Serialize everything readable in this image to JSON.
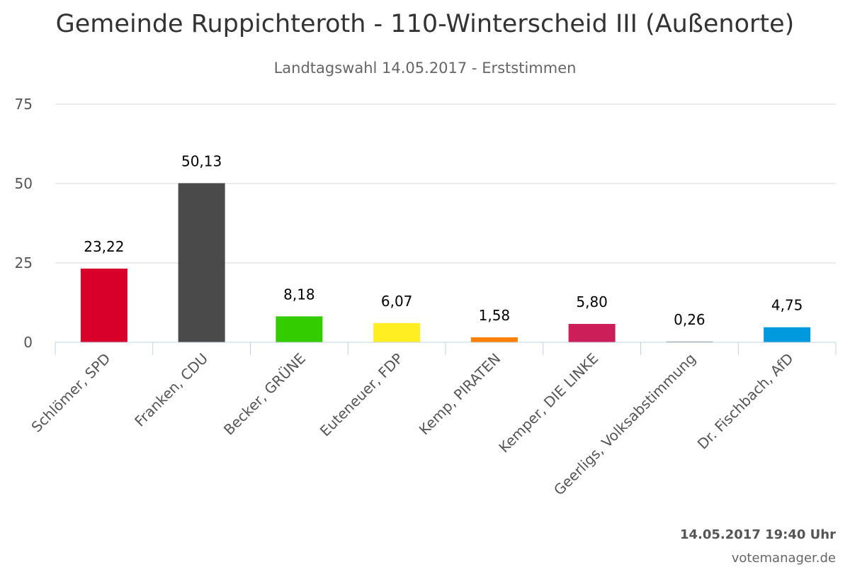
{
  "chart_data": {
    "type": "bar",
    "title": "Gemeinde Ruppichteroth - 110-Winterscheid III (Außenorte)",
    "subtitle": "Landtagswahl 14.05.2017 - Erststimmen",
    "categories": [
      "Schlömer, SPD",
      "Franken, CDU",
      "Becker, GRÜNE",
      "Euteneuer, FDP",
      "Kemp, PIRATEN",
      "Kemper, DIE LINKE",
      "Geerligs, Volksabstimmung",
      "Dr. Fischbach, AfD"
    ],
    "values": [
      23.22,
      50.13,
      8.18,
      6.07,
      1.58,
      5.8,
      0.26,
      4.75
    ],
    "value_labels": [
      "23,22",
      "50,13",
      "8,18",
      "6,07",
      "1,58",
      "5,80",
      "0,26",
      "4,75"
    ],
    "colors": [
      "#d8002a",
      "#4a4a4a",
      "#33cc00",
      "#ffee22",
      "#ff7f00",
      "#cc1f5a",
      "#888888",
      "#0099dd"
    ],
    "yticks": [
      0,
      25,
      50,
      75
    ],
    "ylim": [
      0,
      75
    ],
    "grid": true,
    "xlabel": "",
    "ylabel": ""
  },
  "footer": {
    "timestamp": "14.05.2017 19:40 Uhr",
    "credit": "votemanager.de"
  }
}
